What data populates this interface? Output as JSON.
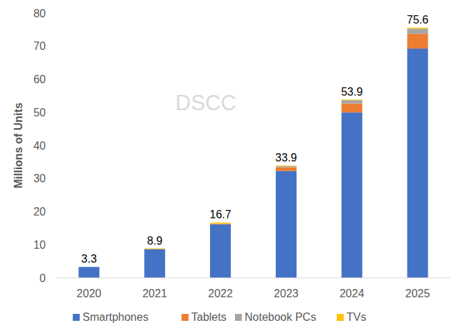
{
  "chart_data": {
    "type": "bar",
    "stacked": true,
    "y_label": "Millions of Units",
    "watermark": "DSCC",
    "categories": [
      "2020",
      "2021",
      "2022",
      "2023",
      "2024",
      "2025"
    ],
    "series": [
      {
        "name": "Smartphones",
        "color": "#4472c4",
        "values": [
          3.3,
          8.7,
          16.2,
          32.3,
          50.0,
          69.3
        ]
      },
      {
        "name": "Tablets",
        "color": "#ed7d31",
        "values": [
          0,
          0,
          0.2,
          1.1,
          2.7,
          4.5
        ]
      },
      {
        "name": "Notebook PCs",
        "color": "#a5a5a5",
        "values": [
          0,
          0,
          0,
          0.3,
          1.0,
          1.5
        ]
      },
      {
        "name": "TVs",
        "color": "#ffc000",
        "values": [
          0,
          0.2,
          0.3,
          0.2,
          0.2,
          0.3
        ]
      }
    ],
    "totals": [
      3.3,
      8.9,
      16.7,
      33.9,
      53.9,
      75.6
    ],
    "ylim": [
      0,
      80
    ],
    "yticks": [
      0,
      10,
      20,
      30,
      40,
      50,
      60,
      70,
      80
    ],
    "grid": false,
    "legend": "bottom"
  }
}
